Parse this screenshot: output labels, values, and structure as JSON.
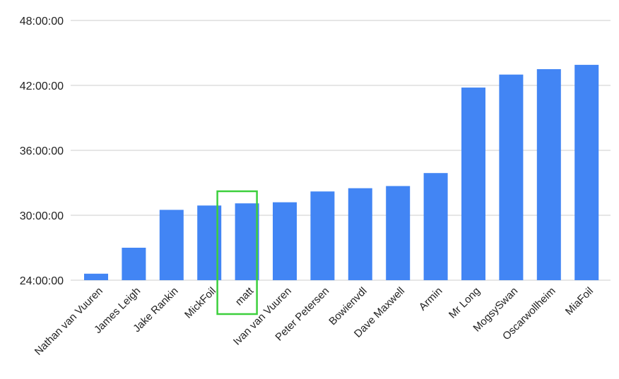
{
  "chart_data": {
    "type": "bar",
    "title": "",
    "xlabel": "",
    "ylabel": "",
    "categories": [
      "Nathan van Vuuren",
      "James Leigh",
      "Jake Rankin",
      "MickFoil",
      "matt",
      "Ivan van Vuuren",
      "Peter Petersen",
      "Bowienvdl",
      "Dave Maxwell",
      "Armin",
      "Mr Long",
      "MogsySwan",
      "Oscarwollheim",
      "MiaFoil"
    ],
    "series": [
      {
        "values": [
          24.6,
          27.0,
          30.5,
          30.9,
          31.1,
          31.2,
          32.2,
          32.5,
          32.7,
          33.9,
          41.8,
          43.0,
          43.5,
          43.9
        ]
      }
    ],
    "ylim": [
      24,
      48
    ],
    "yticks": [
      24,
      30,
      36,
      42,
      48
    ],
    "ytick_labels": [
      "24:00:00",
      "30:00:00",
      "36:00:00",
      "42:00:00",
      "48:00:00"
    ],
    "grid": true,
    "legend": "none",
    "bar_color": "#4285f4",
    "highlight_category": "matt",
    "highlight_color": "#3ccf3c"
  }
}
